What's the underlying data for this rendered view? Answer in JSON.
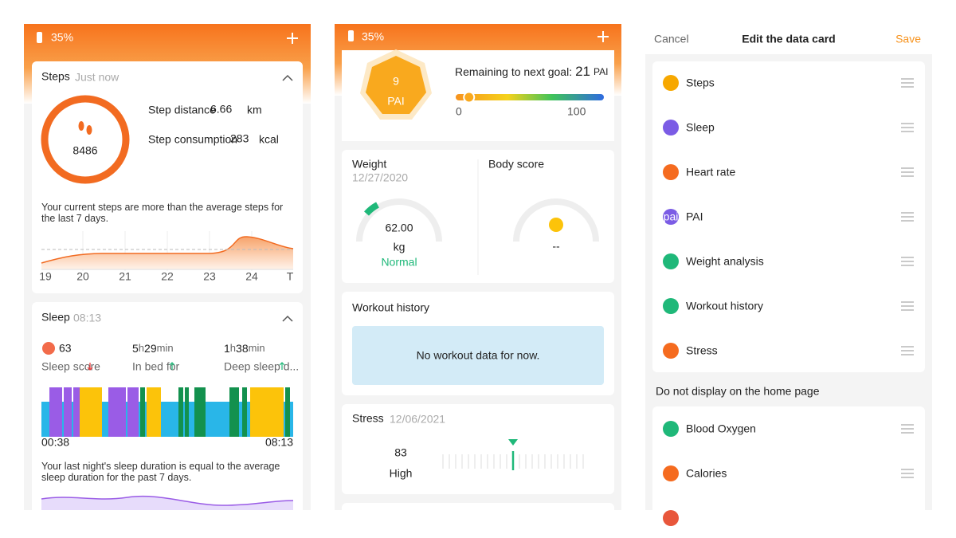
{
  "steps_screen": {
    "battery": "35%",
    "steps_card": {
      "title": "Steps",
      "time": "Just now",
      "count": "8486",
      "distance_label": "Step distance",
      "distance": "6.66",
      "distance_unit": "km",
      "consumption_label": "Step consumption",
      "consumption": "283",
      "consumption_unit": "kcal",
      "summary": "Your current steps are more than the average steps for the last 7 days.",
      "days": [
        "19",
        "20",
        "21",
        "22",
        "23",
        "24",
        "T"
      ]
    },
    "sleep_card": {
      "title": "Sleep",
      "time": "08:13",
      "score": "63",
      "score_label": "Sleep score",
      "in_bed_hours": "5",
      "hour_unit": "h",
      "in_bed_minutes": "29",
      "minute_unit": "min",
      "in_bed_label": "In bed for",
      "deep_hours": "1",
      "deep_minutes": "38",
      "deep_label": "Deep sleep d...",
      "start": "00:38",
      "end": "08:13",
      "summary": "Your last night's sleep duration is equal to the average sleep duration for the past 7 days."
    }
  },
  "pai_screen": {
    "battery": "35%",
    "pai": {
      "value": 9,
      "unit": "PAI",
      "remaining_label": "Remaining to next goal:",
      "remaining": "21",
      "min": 0,
      "max": 100
    },
    "weight": {
      "title": "Weight",
      "date": "12/27/2020",
      "value": "62.00",
      "unit": "kg",
      "status": "Normal"
    },
    "body_score": {
      "title": "Body score",
      "value": "--"
    },
    "workout": {
      "title": "Workout history",
      "empty": "No workout data for now."
    },
    "stress": {
      "title": "Stress",
      "date": "12/06/2021",
      "value": "83",
      "level": "High"
    }
  },
  "edit_screen": {
    "cancel": "Cancel",
    "title": "Edit the data card",
    "save": "Save",
    "pai_icon": "pai",
    "shown": [
      "Steps",
      "Sleep",
      "Heart rate",
      "PAI",
      "Weight analysis",
      "Workout history",
      "Stress"
    ],
    "hidden_header": "Do not display on the home page",
    "hidden": [
      "Blood Oxygen",
      "Calories"
    ]
  }
}
